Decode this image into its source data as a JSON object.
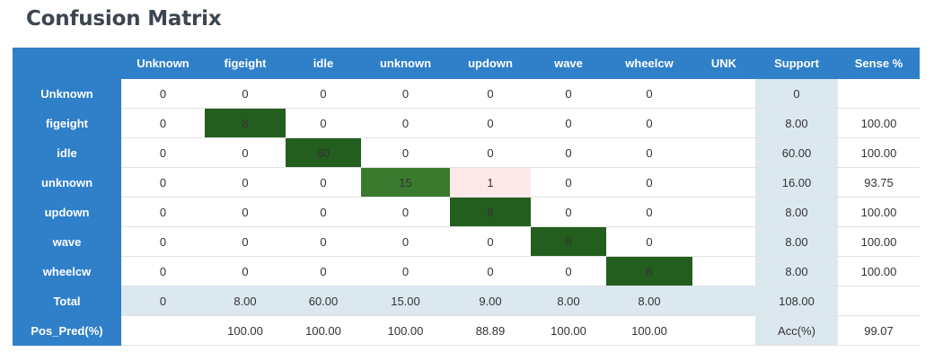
{
  "title": "Confusion Matrix",
  "columns": [
    "Unknown",
    "figeight",
    "idle",
    "unknown",
    "updown",
    "wave",
    "wheelcw",
    "UNK",
    "Support",
    "Sense %"
  ],
  "rows": [
    {
      "label": "Unknown",
      "cells": [
        "0",
        "0",
        "0",
        "0",
        "0",
        "0",
        "0",
        ""
      ],
      "support": "0",
      "sense": ""
    },
    {
      "label": "figeight",
      "cells": [
        "0",
        "8",
        "0",
        "0",
        "0",
        "0",
        "0",
        ""
      ],
      "support": "8.00",
      "sense": "100.00"
    },
    {
      "label": "idle",
      "cells": [
        "0",
        "0",
        "60",
        "0",
        "0",
        "0",
        "0",
        ""
      ],
      "support": "60.00",
      "sense": "100.00"
    },
    {
      "label": "unknown",
      "cells": [
        "0",
        "0",
        "0",
        "15",
        "1",
        "0",
        "0",
        ""
      ],
      "support": "16.00",
      "sense": "93.75"
    },
    {
      "label": "updown",
      "cells": [
        "0",
        "0",
        "0",
        "0",
        "8",
        "0",
        "0",
        ""
      ],
      "support": "8.00",
      "sense": "100.00"
    },
    {
      "label": "wave",
      "cells": [
        "0",
        "0",
        "0",
        "0",
        "0",
        "8",
        "0",
        ""
      ],
      "support": "8.00",
      "sense": "100.00"
    },
    {
      "label": "wheelcw",
      "cells": [
        "0",
        "0",
        "0",
        "0",
        "0",
        "0",
        "8",
        ""
      ],
      "support": "8.00",
      "sense": "100.00"
    }
  ],
  "total": {
    "label": "Total",
    "cells": [
      "0",
      "8.00",
      "60.00",
      "15.00",
      "9.00",
      "8.00",
      "8.00",
      ""
    ],
    "support": "108.00"
  },
  "pos_pred": {
    "label": "Pos_Pred(%)",
    "cells": [
      "",
      "100.00",
      "100.00",
      "100.00",
      "88.89",
      "100.00",
      "100.00",
      ""
    ],
    "acc_label": "Acc(%)",
    "acc_value": "99.07"
  },
  "colors": {
    "header": "#2f7fc9",
    "diag_dark": "#245e1f",
    "diag_mid": "#3a7a2e",
    "misclass": "#fde8e8",
    "support_bg": "#dce8f0"
  }
}
